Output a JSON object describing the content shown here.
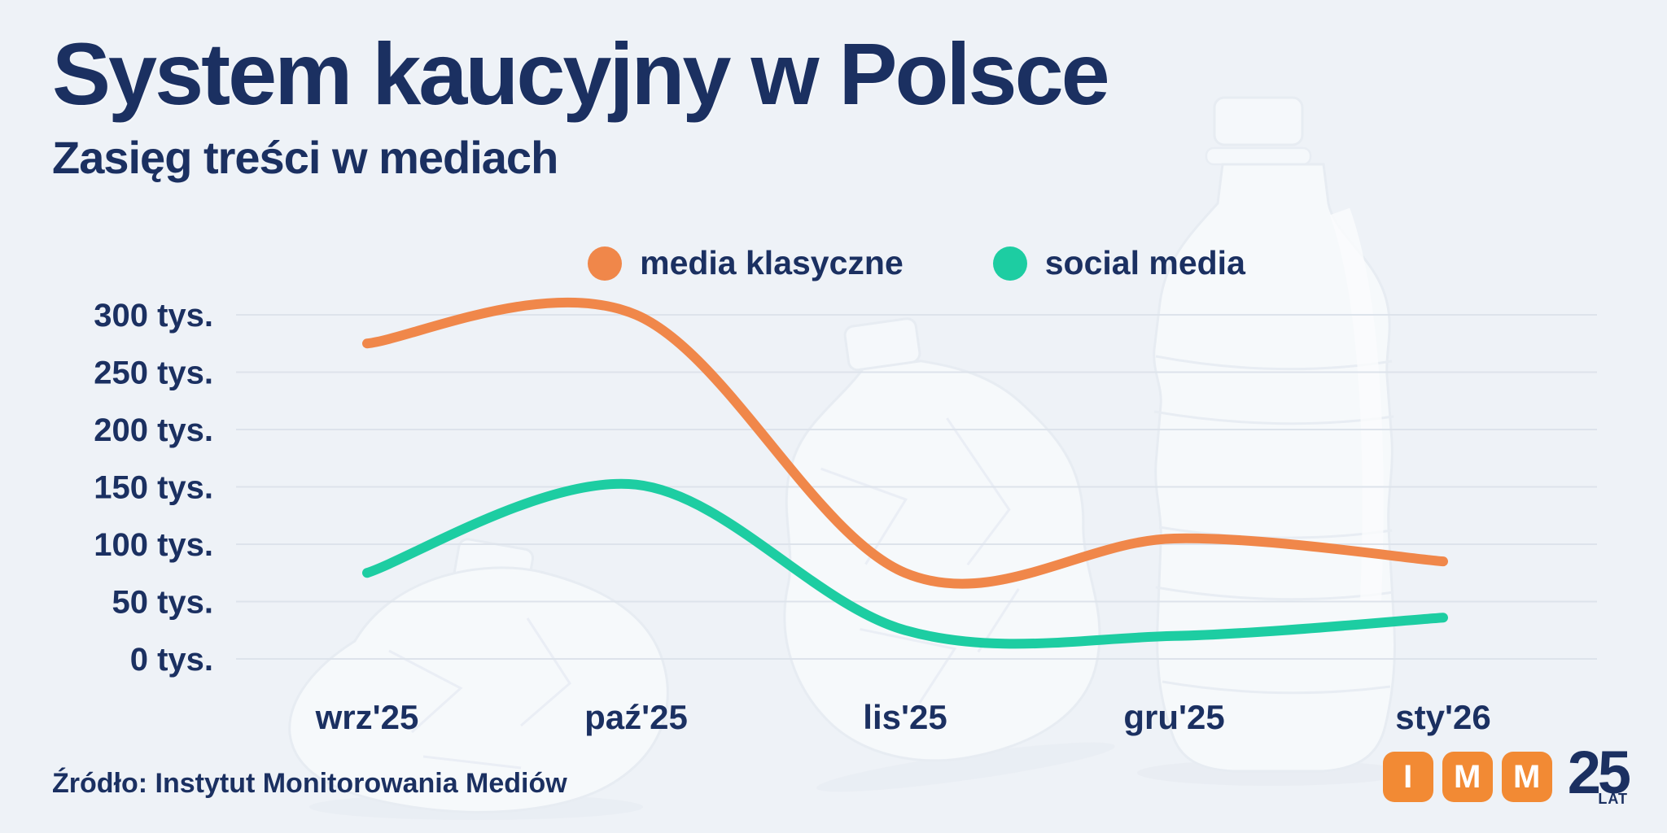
{
  "page": {
    "background": "#eef2f7",
    "text_color": "#1b3061",
    "gridline_color": "#dde3eb"
  },
  "header": {
    "title": "System kaucyjny w Polsce",
    "subtitle": "Zasięg treści w mediach"
  },
  "legend": {
    "items": [
      {
        "label": "media klasyczne",
        "color": "#f0874a"
      },
      {
        "label": "social media",
        "color": "#1dcda2"
      }
    ]
  },
  "chart_data": {
    "type": "line",
    "title": "Zasięg treści w mediach",
    "x": [
      "wrz'25",
      "paź'25",
      "lis'25",
      "gru'25",
      "sty'26"
    ],
    "series": [
      {
        "name": "media klasyczne",
        "color": "#f0874a",
        "values": [
          275,
          300,
          75,
          105,
          85
        ]
      },
      {
        "name": "social media",
        "color": "#1dcda2",
        "values": [
          75,
          152,
          25,
          20,
          36
        ]
      }
    ],
    "unit": "tys.",
    "yticks": [
      0,
      50,
      100,
      150,
      200,
      250,
      300
    ],
    "ytick_labels": [
      "0 tys.",
      "50 tys.",
      "100 tys.",
      "150 tys.",
      "200 tys.",
      "250 tys.",
      "300 tys."
    ],
    "ylim": [
      0,
      300
    ],
    "grid": true,
    "smooth": true,
    "legend_position": "top-center"
  },
  "footer": {
    "source": "Źródło: Instytut Monitorowania Mediów"
  },
  "logo": {
    "tiles": [
      "I",
      "M",
      "M"
    ],
    "tile_color": "#f28a34",
    "years": "25",
    "years_suffix": "LAT",
    "text_color": "#1b3061"
  }
}
